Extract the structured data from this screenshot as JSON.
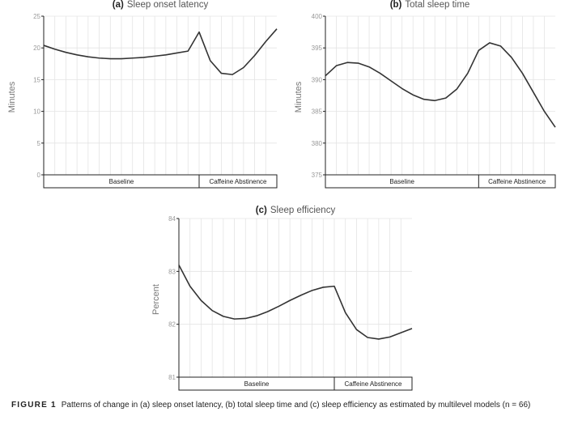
{
  "caption": {
    "label": "FIGURE 1",
    "text": "Patterns of change in (a) sleep onset latency, (b) total sleep time and (c) sleep efficiency as estimated by multilevel models (n = 66)"
  },
  "chart_data": [
    {
      "type": "line",
      "panel": "(a)",
      "title": "Sleep onset latency",
      "ylabel": "Minutes",
      "ylim": [
        0,
        25
      ],
      "yticks": [
        0,
        5,
        10,
        15,
        20,
        25
      ],
      "grid": true,
      "phases": [
        {
          "label": "Baseline",
          "x_start": 0,
          "x_end": 14
        },
        {
          "label": "Caffeine Abstinence",
          "x_start": 14,
          "x_end": 21
        }
      ],
      "x": [
        0,
        1,
        2,
        3,
        4,
        5,
        6,
        7,
        8,
        9,
        10,
        11,
        12,
        13,
        14,
        15,
        16,
        17,
        18,
        19,
        20,
        21
      ],
      "values": [
        20.4,
        19.8,
        19.3,
        18.9,
        18.6,
        18.4,
        18.3,
        18.3,
        18.4,
        18.5,
        18.7,
        18.9,
        19.2,
        19.5,
        22.5,
        18.0,
        16.0,
        15.8,
        16.9,
        18.8,
        21.0,
        23.0
      ]
    },
    {
      "type": "line",
      "panel": "(b)",
      "title": "Total sleep time",
      "ylabel": "Minutes",
      "ylim": [
        375,
        400
      ],
      "yticks": [
        375,
        380,
        385,
        390,
        395,
        400
      ],
      "grid": true,
      "phases": [
        {
          "label": "Baseline",
          "x_start": 0,
          "x_end": 14
        },
        {
          "label": "Caffeine Abstinence",
          "x_start": 14,
          "x_end": 21
        }
      ],
      "x": [
        0,
        1,
        2,
        3,
        4,
        5,
        6,
        7,
        8,
        9,
        10,
        11,
        12,
        13,
        14,
        15,
        16,
        17,
        18,
        19,
        20,
        21
      ],
      "values": [
        390.6,
        392.2,
        392.7,
        392.6,
        392.0,
        391.0,
        389.8,
        388.6,
        387.6,
        386.9,
        386.7,
        387.1,
        388.5,
        391.0,
        394.6,
        395.8,
        395.3,
        393.5,
        391.0,
        388.0,
        385.0,
        382.5
      ]
    },
    {
      "type": "line",
      "panel": "(c)",
      "title": "Sleep efficiency",
      "ylabel": "Percent",
      "ylim": [
        81,
        84
      ],
      "yticks": [
        81,
        82,
        83,
        84
      ],
      "grid": true,
      "phases": [
        {
          "label": "Baseline",
          "x_start": 0,
          "x_end": 14
        },
        {
          "label": "Caffeine Abstinence",
          "x_start": 14,
          "x_end": 21
        }
      ],
      "x": [
        0,
        1,
        2,
        3,
        4,
        5,
        6,
        7,
        8,
        9,
        10,
        11,
        12,
        13,
        14,
        15,
        16,
        17,
        18,
        19,
        20,
        21
      ],
      "values": [
        83.12,
        82.72,
        82.45,
        82.26,
        82.15,
        82.1,
        82.11,
        82.16,
        82.24,
        82.34,
        82.45,
        82.55,
        82.64,
        82.7,
        82.72,
        82.22,
        81.9,
        81.75,
        81.72,
        81.76,
        81.84,
        81.92
      ]
    }
  ]
}
